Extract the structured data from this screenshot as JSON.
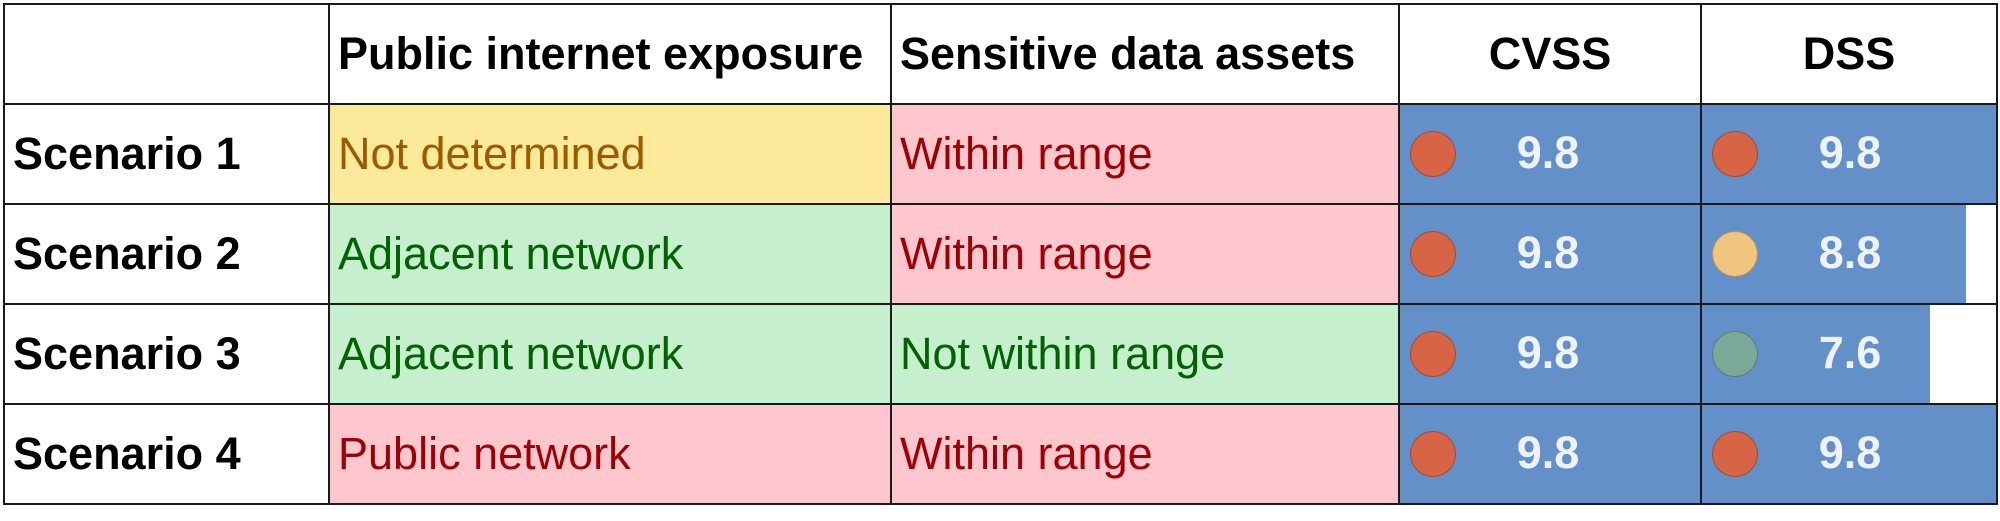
{
  "header": {
    "col1": "Public internet exposure",
    "col2": "Sensitive data assets",
    "col3": "CVSS",
    "col4": "DSS"
  },
  "score_scale_max": 9.8,
  "colors": {
    "critical": "#d86446",
    "high": "#f0c57f",
    "medium": "#7aa99a",
    "bar": "#6390c8",
    "yellow_bg": "#fce99a",
    "green_bg": "#c6efcd",
    "pink_bg": "#fec6cd"
  },
  "rows": [
    {
      "label": "Scenario 1",
      "exposure": "Not determined",
      "exposure_level": "yellow",
      "assets": "Within range",
      "assets_level": "pink",
      "cvss": "9.8",
      "cvss_value": 9.8,
      "cvss_dot": "critical",
      "dss": "9.8",
      "dss_value": 9.8,
      "dss_dot": "critical"
    },
    {
      "label": "Scenario 2",
      "exposure": "Adjacent network",
      "exposure_level": "green",
      "assets": "Within range",
      "assets_level": "pink",
      "cvss": "9.8",
      "cvss_value": 9.8,
      "cvss_dot": "critical",
      "dss": "8.8",
      "dss_value": 8.8,
      "dss_dot": "high"
    },
    {
      "label": "Scenario 3",
      "exposure": "Adjacent network",
      "exposure_level": "green",
      "assets": "Not within range",
      "assets_level": "green",
      "cvss": "9.8",
      "cvss_value": 9.8,
      "cvss_dot": "critical",
      "dss": "7.6",
      "dss_value": 7.6,
      "dss_dot": "medium"
    },
    {
      "label": "Scenario 4",
      "exposure": "Public network",
      "exposure_level": "pink",
      "assets": "Within range",
      "assets_level": "pink",
      "cvss": "9.8",
      "cvss_value": 9.8,
      "cvss_dot": "critical",
      "dss": "9.8",
      "dss_value": 9.8,
      "dss_dot": "critical"
    }
  ]
}
